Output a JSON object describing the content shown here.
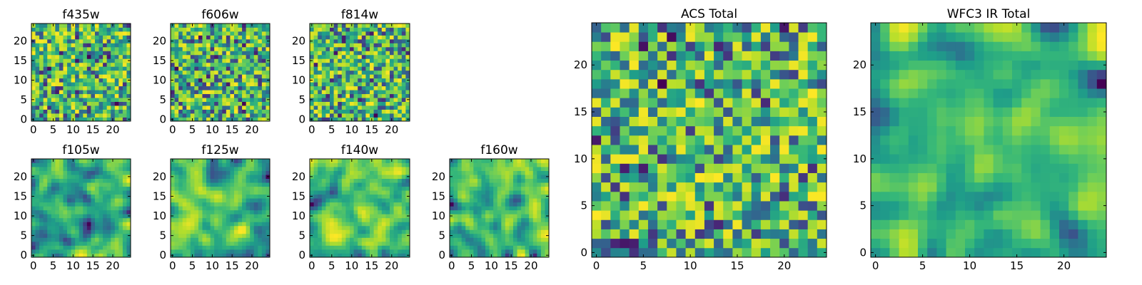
{
  "chart_data": [
    {
      "type": "heatmap",
      "title": "f435w",
      "grid_size": 25,
      "xticks": [
        "0",
        "5",
        "10",
        "15",
        "20"
      ],
      "yticks": [
        "0",
        "5",
        "10",
        "15",
        "20"
      ],
      "pattern": "pixel-noise",
      "seed": 11,
      "colormap": "viridis"
    },
    {
      "type": "heatmap",
      "title": "f606w",
      "grid_size": 25,
      "xticks": [
        "0",
        "5",
        "10",
        "15",
        "20"
      ],
      "yticks": [
        "0",
        "5",
        "10",
        "15",
        "20"
      ],
      "pattern": "pixel-noise",
      "seed": 23,
      "colormap": "viridis"
    },
    {
      "type": "heatmap",
      "title": "f814w",
      "grid_size": 25,
      "xticks": [
        "0",
        "5",
        "10",
        "15",
        "20"
      ],
      "yticks": [
        "0",
        "5",
        "10",
        "15",
        "20"
      ],
      "pattern": "pixel-noise",
      "seed": 37,
      "colormap": "viridis"
    },
    {
      "type": "heatmap",
      "title": "f105w",
      "grid_size": 25,
      "xticks": [
        "0",
        "5",
        "10",
        "15",
        "20"
      ],
      "yticks": [
        "0",
        "5",
        "10",
        "15",
        "20"
      ],
      "pattern": "smoothed-noise",
      "seed": 41,
      "colormap": "viridis"
    },
    {
      "type": "heatmap",
      "title": "f125w",
      "grid_size": 25,
      "xticks": [
        "0",
        "5",
        "10",
        "15",
        "20"
      ],
      "yticks": [
        "0",
        "5",
        "10",
        "15",
        "20"
      ],
      "pattern": "smoothed-noise",
      "seed": 53,
      "colormap": "viridis"
    },
    {
      "type": "heatmap",
      "title": "f140w",
      "grid_size": 25,
      "xticks": [
        "0",
        "5",
        "10",
        "15",
        "20"
      ],
      "yticks": [
        "0",
        "5",
        "10",
        "15",
        "20"
      ],
      "pattern": "smoothed-noise",
      "seed": 67,
      "colormap": "viridis"
    },
    {
      "type": "heatmap",
      "title": "f160w",
      "grid_size": 25,
      "xticks": [
        "0",
        "5",
        "10",
        "15",
        "20"
      ],
      "yticks": [
        "0",
        "5",
        "10",
        "15",
        "20"
      ],
      "pattern": "smoothed-noise",
      "seed": 79,
      "colormap": "viridis"
    },
    {
      "type": "heatmap",
      "title": "ACS Total",
      "grid_size": 25,
      "xticks": [
        "0",
        "5",
        "10",
        "15",
        "20"
      ],
      "yticks": [
        "0",
        "5",
        "10",
        "15",
        "20"
      ],
      "pattern": "pixel-noise",
      "seed": 97,
      "colormap": "viridis"
    },
    {
      "type": "heatmap",
      "title": "WFC3 IR Total",
      "grid_size": 25,
      "xticks": [
        "0",
        "5",
        "10",
        "15",
        "20"
      ],
      "yticks": [
        "0",
        "5",
        "10",
        "15",
        "20"
      ],
      "pattern": "smoothed-noise",
      "seed": 113,
      "colormap": "viridis"
    }
  ]
}
